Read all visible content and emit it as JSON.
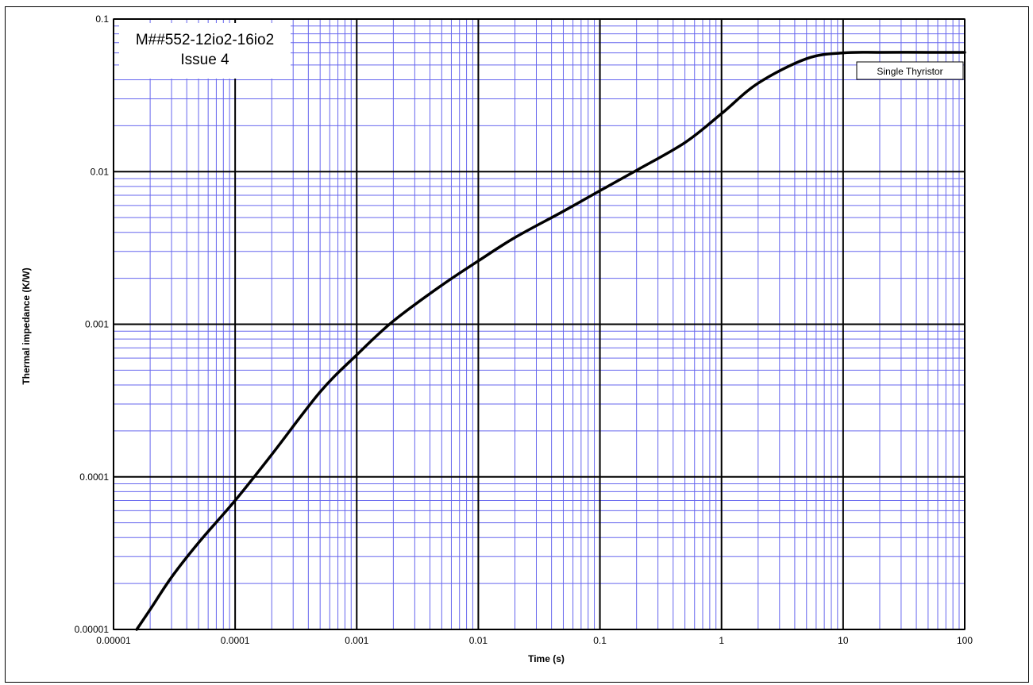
{
  "chart_data": {
    "type": "line",
    "title_lines": [
      "M##552-12io2-16io2",
      "Issue 4"
    ],
    "xlabel": "Time (s)",
    "ylabel": "Thermal impedance (K/W)",
    "x_scale": "log",
    "y_scale": "log",
    "xlim": [
      1e-05,
      100
    ],
    "ylim": [
      1e-05,
      0.1
    ],
    "x_ticks": [
      "0.00001",
      "0.0001",
      "0.001",
      "0.01",
      "0.1",
      "1",
      "10",
      "100"
    ],
    "y_ticks": [
      "0.00001",
      "0.0001",
      "0.001",
      "0.01",
      "0.1"
    ],
    "grid": {
      "major": true,
      "minor": true,
      "major_color": "#000000",
      "minor_color": "#6666ee"
    },
    "series": [
      {
        "name": "Single Thyristor",
        "color": "#000000",
        "x": [
          1.55e-05,
          2e-05,
          3e-05,
          5e-05,
          0.0001,
          0.0002,
          0.0005,
          0.001,
          0.002,
          0.005,
          0.01,
          0.02,
          0.05,
          0.1,
          0.2,
          0.5,
          1,
          2,
          5,
          10,
          20,
          50,
          100
        ],
        "y": [
          1e-05,
          1.35e-05,
          2.2e-05,
          3.7e-05,
          7e-05,
          0.00014,
          0.00036,
          0.00063,
          0.00105,
          0.0018,
          0.0026,
          0.0037,
          0.0055,
          0.0075,
          0.0102,
          0.0155,
          0.024,
          0.038,
          0.055,
          0.06,
          0.0605,
          0.0605,
          0.0605
        ]
      }
    ]
  }
}
